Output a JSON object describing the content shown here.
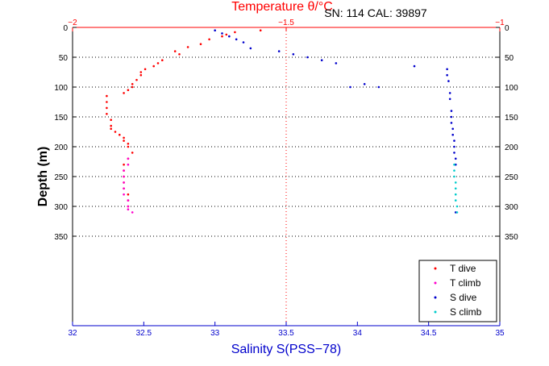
{
  "chart_data": {
    "type": "scatter",
    "title": "Temperature θ/°C",
    "annotation": "SN: 114  CAL: 39897",
    "xlabel": "Salinity S(PSS−78)",
    "ylabel": "Depth (m)",
    "x_bottom": {
      "label": "Salinity S(PSS−78)",
      "range": [
        32,
        35
      ],
      "ticks": [
        32,
        32.5,
        33,
        33.5,
        34,
        34.5,
        35
      ],
      "tick_labels": [
        "32",
        "32.5",
        "33",
        "33.5",
        "34",
        "34.5",
        "35"
      ],
      "color": "#0000cc"
    },
    "x_top": {
      "label": "Temperature θ/°C",
      "range": [
        -2,
        -1
      ],
      "ticks": [
        -2,
        -1.5,
        -1
      ],
      "tick_labels": [
        "−2",
        "−1.5",
        "−1"
      ],
      "color": "#ff0000"
    },
    "y": {
      "label": "Depth (m)",
      "range": [
        0,
        500
      ],
      "reversed": true,
      "ticks": [
        0,
        50,
        100,
        150,
        200,
        250,
        300,
        350
      ],
      "tick_labels": [
        "0",
        "50",
        "100",
        "150",
        "200",
        "250",
        "300",
        "350"
      ]
    },
    "grid": "dotted horizontal lines at depth ticks; dotted red vertical line at −1.5",
    "legend_position": "bottom-right",
    "series": [
      {
        "name": "T dive",
        "axis": "top",
        "color": "#ff0000",
        "x": [
          -1.56,
          -1.62,
          -1.64,
          -1.65,
          -1.68,
          -1.7,
          -1.73,
          -1.76,
          -1.75,
          -1.79,
          -1.8,
          -1.81,
          -1.83,
          -1.84,
          -1.84,
          -1.85,
          -1.86,
          -1.86,
          -1.87,
          -1.88,
          -1.92,
          -1.92,
          -1.92,
          -1.92,
          -1.91,
          -1.91,
          -1.91,
          -1.9,
          -1.89,
          -1.88,
          -1.88,
          -1.87,
          -1.87,
          -1.86,
          -1.87,
          -1.88,
          -1.88,
          -1.88,
          -1.88,
          -1.88,
          -1.87,
          -1.87,
          -1.87
        ],
        "y": [
          5,
          8,
          12,
          15,
          20,
          28,
          33,
          40,
          45,
          55,
          60,
          65,
          70,
          75,
          80,
          88,
          95,
          100,
          105,
          110,
          115,
          125,
          135,
          145,
          155,
          165,
          170,
          175,
          180,
          185,
          190,
          195,
          200,
          210,
          220,
          230,
          240,
          250,
          260,
          270,
          280,
          290,
          300
        ]
      },
      {
        "name": "T climb",
        "axis": "top",
        "color": "#ff00cc",
        "x": [
          -1.87,
          -1.87,
          -1.88,
          -1.88,
          -1.88,
          -1.88,
          -1.88,
          -1.87,
          -1.87,
          -1.87,
          -1.86
        ],
        "y": [
          220,
          230,
          240,
          250,
          260,
          270,
          280,
          290,
          300,
          305,
          310
        ]
      },
      {
        "name": "S dive",
        "axis": "bottom",
        "color": "#0000cc",
        "x": [
          33.0,
          33.05,
          33.1,
          33.15,
          33.2,
          33.25,
          33.45,
          33.55,
          33.65,
          33.75,
          33.85,
          33.95,
          34.05,
          34.15,
          34.4,
          34.63,
          34.63,
          34.64,
          34.65,
          34.65,
          34.66,
          34.66,
          34.66,
          34.67,
          34.67,
          34.68,
          34.68,
          34.68,
          34.69,
          34.69,
          34.69
        ],
        "y": [
          5,
          10,
          15,
          20,
          25,
          35,
          40,
          45,
          50,
          55,
          60,
          100,
          95,
          100,
          65,
          70,
          80,
          90,
          110,
          120,
          140,
          150,
          160,
          170,
          180,
          190,
          200,
          210,
          220,
          230,
          310
        ]
      },
      {
        "name": "S climb",
        "axis": "bottom",
        "color": "#00cccc",
        "x": [
          34.68,
          34.68,
          34.68,
          34.69,
          34.69,
          34.69,
          34.69,
          34.7,
          34.7
        ],
        "y": [
          230,
          240,
          250,
          260,
          270,
          280,
          290,
          300,
          310
        ]
      }
    ]
  }
}
